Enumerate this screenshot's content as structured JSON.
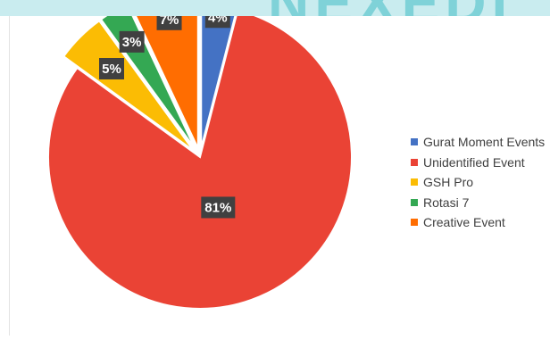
{
  "chart_data": {
    "type": "pie",
    "title": "",
    "categories": [
      "Gurat Moment Events",
      "Unidentified Event",
      "GSH Pro",
      "Rotasi 7",
      "Creative Event"
    ],
    "values": [
      4,
      81,
      5,
      3,
      7
    ],
    "labels": [
      "4%",
      "81%",
      "5%",
      "3%",
      "7%"
    ],
    "colors": [
      "#4472c4",
      "#ea4335",
      "#fbbc04",
      "#34a853",
      "#ff6d01"
    ],
    "exploded": true,
    "start_angle": "12 o'clock, clockwise",
    "legend_position": "right"
  }
}
